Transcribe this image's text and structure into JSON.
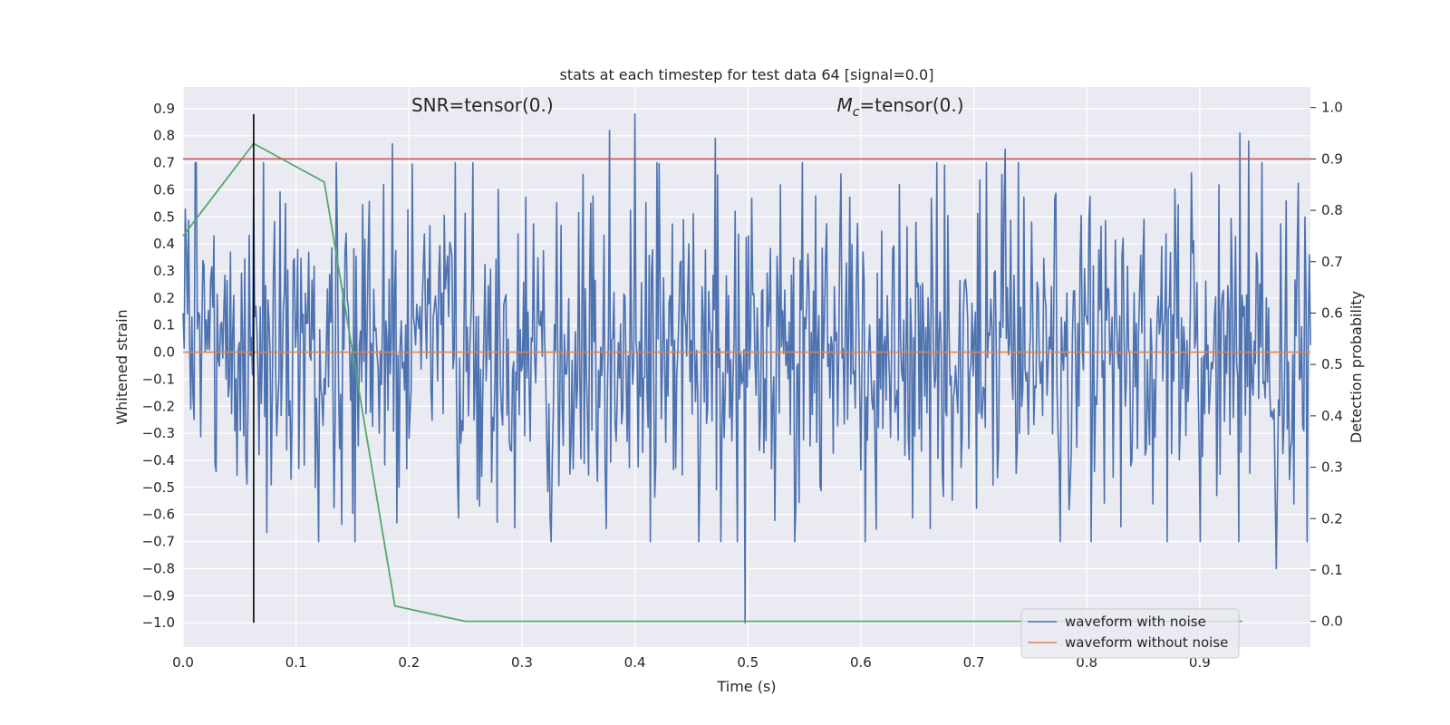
{
  "chart_data": {
    "type": "line",
    "title": "stats at each timestep for test data 64 [signal=0.0]",
    "xlabel": "Time (s)",
    "ylabel": "Whitened strain",
    "y2label": "Detection probability",
    "xlim": [
      0.0,
      0.998
    ],
    "ylim": [
      -1.09,
      0.98
    ],
    "y2lim": [
      -0.05,
      1.04
    ],
    "xticks": [
      0.0,
      0.1,
      0.2,
      0.3,
      0.4,
      0.5,
      0.6,
      0.7,
      0.8,
      0.9
    ],
    "xtick_labels": [
      "0.0",
      "0.1",
      "0.2",
      "0.3",
      "0.4",
      "0.5",
      "0.6",
      "0.7",
      "0.8",
      "0.9"
    ],
    "yticks": [
      0.9,
      0.8,
      0.7,
      0.6,
      0.5,
      0.4,
      0.3,
      0.2,
      0.1,
      0.0,
      -0.1,
      -0.2,
      -0.3,
      -0.4,
      -0.5,
      -0.6,
      -0.7,
      -0.8,
      -0.9,
      -1.0
    ],
    "ytick_labels": [
      "0.9",
      "0.8",
      "0.7",
      "0.6",
      "0.5",
      "0.4",
      "0.3",
      "0.2",
      "0.1",
      "0.0",
      "−0.1",
      "−0.2",
      "−0.3",
      "−0.4",
      "−0.5",
      "−0.6",
      "−0.7",
      "−0.8",
      "−0.9",
      "−1.0"
    ],
    "y2ticks": [
      1.0,
      0.9,
      0.8,
      0.7,
      0.6,
      0.5,
      0.4,
      0.3,
      0.2,
      0.1,
      0.0
    ],
    "y2tick_labels": [
      "1.0",
      "0.9",
      "0.8",
      "0.7",
      "0.6",
      "0.5",
      "0.4",
      "0.3",
      "0.2",
      "0.1",
      "0.0"
    ],
    "grid": true,
    "legend_placement": "bottom-right",
    "annotations": [
      {
        "text": "SNR=tensor(0.)",
        "x": 0.265,
        "y": 0.89
      },
      {
        "mc_symbol": "M",
        "mc_subscript": "c",
        "text": "=tensor(0.)",
        "x": 0.635,
        "y": 0.89
      }
    ],
    "series": [
      {
        "name": "waveform with noise",
        "axis": "left",
        "color": "#4c72b0",
        "noise_samples": 1024,
        "noise_x_range": [
          0.0,
          0.998
        ],
        "noise_std": 0.3,
        "x_extremes": [
          0.0625,
          0.185,
          0.378,
          0.4,
          0.471,
          0.498,
          0.728,
          0.936,
          0.943,
          0.968
        ],
        "y_extremes": [
          0.58,
          0.77,
          0.82,
          0.88,
          0.79,
          -1.0,
          0.75,
          0.81,
          0.78,
          -0.8
        ]
      },
      {
        "name": "waveform without noise",
        "axis": "left",
        "color": "#dd8452",
        "x": [
          0.0,
          0.998
        ],
        "y": [
          0.0,
          0.0
        ]
      },
      {
        "axis": "right",
        "color": "#55a868",
        "x": [
          0.0,
          0.0625,
          0.125,
          0.1875,
          0.25,
          0.3125,
          0.375,
          0.4375,
          0.5,
          0.5625,
          0.625,
          0.6875,
          0.75,
          0.8125,
          0.875,
          0.9375
        ],
        "y": [
          0.75,
          0.93,
          0.855,
          0.03,
          0.0,
          0.0,
          0.0,
          0.0,
          0.0,
          0.0,
          0.0,
          0.0,
          0.0,
          0.0,
          0.0,
          0.0
        ]
      }
    ],
    "hlines": [
      {
        "axis": "right",
        "y": 0.9,
        "color": "#c44e52"
      }
    ],
    "vlines": [
      {
        "x": 0.0625,
        "ymin": -1.0,
        "ymax": 0.88,
        "color": "#000000"
      }
    ],
    "plot_bg": "#eaeaf2",
    "grid_color": "#ffffff"
  }
}
